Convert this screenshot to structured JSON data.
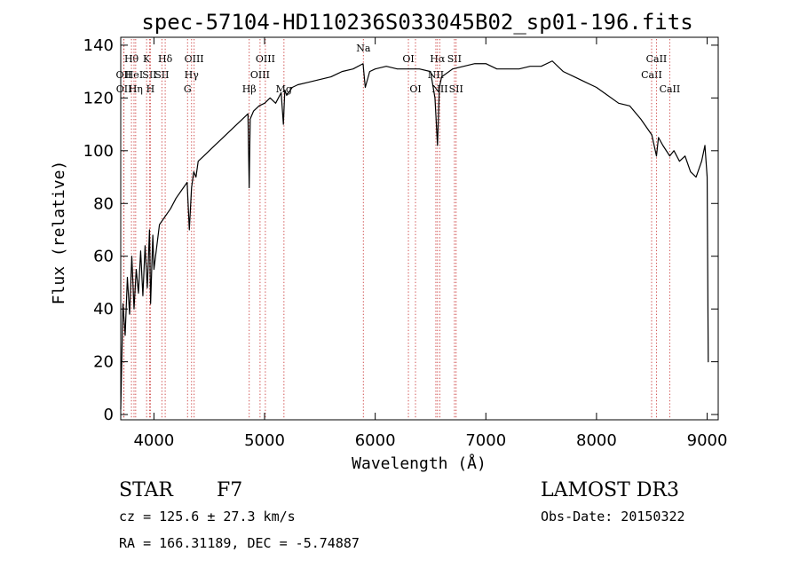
{
  "chart_data": {
    "type": "line",
    "title": "spec-57104-HD110236S033045B02_sp01-196.fits",
    "xlabel": "Wavelength (Å)",
    "ylabel": "Flux (relative)",
    "xlim": [
      3700,
      9100
    ],
    "ylim": [
      -2,
      143
    ],
    "xticks": [
      4000,
      5000,
      6000,
      7000,
      8000,
      9000
    ],
    "yticks": [
      0,
      20,
      40,
      60,
      80,
      100,
      120,
      140
    ],
    "series": [
      {
        "name": "flux",
        "color": "#000000",
        "x": [
          3700,
          3720,
          3740,
          3760,
          3780,
          3800,
          3820,
          3840,
          3860,
          3880,
          3900,
          3920,
          3940,
          3960,
          3970,
          3990,
          4000,
          4050,
          4100,
          4150,
          4200,
          4250,
          4300,
          4320,
          4340,
          4360,
          4380,
          4400,
          4450,
          4500,
          4550,
          4600,
          4650,
          4700,
          4750,
          4800,
          4850,
          4861,
          4870,
          4900,
          4950,
          5000,
          5050,
          5100,
          5150,
          5170,
          5183,
          5200,
          5250,
          5300,
          5400,
          5500,
          5600,
          5700,
          5800,
          5890,
          5910,
          5950,
          6000,
          6100,
          6200,
          6300,
          6400,
          6500,
          6540,
          6563,
          6580,
          6600,
          6700,
          6800,
          6900,
          7000,
          7100,
          7200,
          7300,
          7400,
          7500,
          7600,
          7700,
          7800,
          7900,
          8000,
          8100,
          8200,
          8300,
          8400,
          8500,
          8542,
          8560,
          8600,
          8662,
          8700,
          8750,
          8800,
          8850,
          8900,
          8950,
          8980,
          9000,
          9010
        ],
        "y": [
          2,
          42,
          30,
          52,
          38,
          60,
          40,
          55,
          46,
          62,
          45,
          64,
          48,
          70,
          42,
          68,
          55,
          72,
          75,
          78,
          82,
          85,
          88,
          70,
          86,
          92,
          90,
          96,
          98,
          100,
          102,
          104,
          106,
          108,
          110,
          112,
          114,
          86,
          112,
          115,
          117,
          118,
          120,
          118,
          122,
          110,
          123,
          121,
          124,
          125,
          126,
          127,
          128,
          130,
          131,
          133,
          124,
          130,
          131,
          132,
          131,
          131,
          131,
          130,
          120,
          102,
          124,
          128,
          131,
          132,
          133,
          133,
          131,
          131,
          131,
          132,
          132,
          134,
          130,
          128,
          126,
          124,
          121,
          118,
          117,
          112,
          106,
          98,
          105,
          102,
          98,
          100,
          96,
          98,
          92,
          90,
          96,
          102,
          90,
          20
        ]
      }
    ],
    "line_markers": [
      {
        "label": "OII",
        "x": 3727,
        "row": 2
      },
      {
        "label": "OII",
        "x": 3729,
        "row": 3
      },
      {
        "label": "Hθ",
        "x": 3797,
        "row": 1
      },
      {
        "label": "HeI",
        "x": 3820,
        "row": 2
      },
      {
        "label": "Hη",
        "x": 3835,
        "row": 3
      },
      {
        "label": "K",
        "x": 3934,
        "row": 1
      },
      {
        "label": "SII",
        "x": 3960,
        "row": 2
      },
      {
        "label": "H",
        "x": 3968,
        "row": 3
      },
      {
        "label": "Hδ",
        "x": 4102,
        "row": 1
      },
      {
        "label": "SII",
        "x": 4072,
        "row": 2
      },
      {
        "label": "G",
        "x": 4304,
        "row": 3
      },
      {
        "label": "OIII",
        "x": 4363,
        "row": 1
      },
      {
        "label": "Hγ",
        "x": 4340,
        "row": 2
      },
      {
        "label": "Hβ",
        "x": 4861,
        "row": 3
      },
      {
        "label": "OIII",
        "x": 5007,
        "row": 1
      },
      {
        "label": "OIII",
        "x": 4959,
        "row": 2
      },
      {
        "label": "Mg",
        "x": 5175,
        "row": 3
      },
      {
        "label": "Na",
        "x": 5893,
        "row": 0
      },
      {
        "label": "OI",
        "x": 6300,
        "row": 1
      },
      {
        "label": "OI",
        "x": 6364,
        "row": 3
      },
      {
        "label": "Hα",
        "x": 6563,
        "row": 1
      },
      {
        "label": "NII",
        "x": 6548,
        "row": 2
      },
      {
        "label": "NII",
        "x": 6584,
        "row": 3
      },
      {
        "label": "SII",
        "x": 6716,
        "row": 1
      },
      {
        "label": "SII",
        "x": 6731,
        "row": 3
      },
      {
        "label": "CaII",
        "x": 8498,
        "row": 2
      },
      {
        "label": "CaII",
        "x": 8542,
        "row": 1
      },
      {
        "label": "CaII",
        "x": 8662,
        "row": 3
      }
    ]
  },
  "object": {
    "class": "STAR",
    "subclass": "F7",
    "survey": "LAMOST DR3"
  },
  "measurements": {
    "cz": "cz = 125.6 ± 27.3 km/s",
    "obs_date": "Obs-Date: 20150322",
    "coords": "RA = 166.31189, DEC =  -5.74887"
  }
}
